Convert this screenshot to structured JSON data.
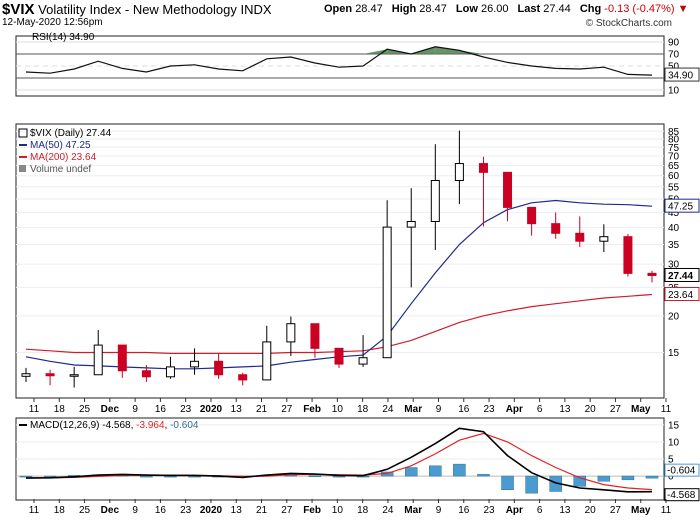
{
  "header": {
    "symbol": "$VIX",
    "name": "Volatility Index - New Methodology",
    "exchange": "INDX",
    "date": "12-May-2020 12:56pm",
    "credit": "© StockCharts.com",
    "open_label": "Open",
    "open": "28.47",
    "high_label": "High",
    "high": "28.47",
    "low_label": "Low",
    "low": "26.00",
    "last_label": "Last",
    "last": "27.44",
    "chg_label": "Chg",
    "chg": "-0.13 (-0.47%)",
    "chg_arrow": "▼"
  },
  "rsi_panel": {
    "legend": "RSI(14) 34.90",
    "value_label": "34.90",
    "levels": [
      90,
      70,
      50,
      30,
      10
    ],
    "overbought": 70,
    "oversold": 30,
    "ylim": [
      0,
      100
    ]
  },
  "price_panel": {
    "legend_price": "$VIX (Daily) 27.44",
    "legend_ma50": "MA(50) 47.25",
    "legend_ma200": "MA(200) 23.64",
    "legend_volume": "Volume undef",
    "last_label": "27.44",
    "ma50_label": "47.25",
    "ma200_label": "23.64",
    "ticks": [
      85,
      80,
      75,
      70,
      65,
      60,
      55,
      50,
      45,
      40,
      35,
      30,
      25,
      20,
      15
    ],
    "scale": "log",
    "ylim": [
      10.5,
      90
    ]
  },
  "macd_panel": {
    "legend_name": "MACD(12,26,9)",
    "legend_macd": "-4.568",
    "legend_signal": "-3.964",
    "legend_hist": "-0.604",
    "ticks": [
      15,
      10,
      5,
      0
    ],
    "hist_label": "-0.604",
    "macd_label": "-4.568",
    "ylim": [
      -7,
      17
    ]
  },
  "x_axis": {
    "labels": [
      {
        "text": "11",
        "bold": false
      },
      {
        "text": "18",
        "bold": false
      },
      {
        "text": "25",
        "bold": false
      },
      {
        "text": "Dec",
        "bold": true
      },
      {
        "text": "9",
        "bold": false
      },
      {
        "text": "16",
        "bold": false
      },
      {
        "text": "23",
        "bold": false
      },
      {
        "text": "2020",
        "bold": true
      },
      {
        "text": "13",
        "bold": false
      },
      {
        "text": "21",
        "bold": false
      },
      {
        "text": "27",
        "bold": false
      },
      {
        "text": "Feb",
        "bold": true
      },
      {
        "text": "10",
        "bold": false
      },
      {
        "text": "18",
        "bold": false
      },
      {
        "text": "24",
        "bold": false
      },
      {
        "text": "Mar",
        "bold": true
      },
      {
        "text": "9",
        "bold": false
      },
      {
        "text": "16",
        "bold": false
      },
      {
        "text": "23",
        "bold": false
      },
      {
        "text": "Apr",
        "bold": true
      },
      {
        "text": "6",
        "bold": false
      },
      {
        "text": "13",
        "bold": false
      },
      {
        "text": "20",
        "bold": false
      },
      {
        "text": "27",
        "bold": false
      },
      {
        "text": "May",
        "bold": true
      },
      {
        "text": "11",
        "bold": false
      }
    ]
  },
  "colors": {
    "up": "#000000",
    "down": "#cc0022",
    "ma50": "#1f2a8a",
    "ma200": "#cc1f2d",
    "rsi_fill": "#4d7f4d",
    "hist": "#4a9bd0",
    "signal": "#e02424"
  },
  "chart_data": [
    {
      "type": "candlestick",
      "title": "$VIX (Daily)",
      "series_names": [
        "$VIX (Daily)",
        "MA(50)",
        "MA(200)"
      ],
      "x": [
        "2019-11-11",
        "2019-11-18",
        "2019-11-25",
        "2019-12-02",
        "2019-12-09",
        "2019-12-16",
        "2019-12-23",
        "2019-12-30",
        "2020-01-06",
        "2020-01-13",
        "2020-01-21",
        "2020-01-27",
        "2020-02-03",
        "2020-02-10",
        "2020-02-18",
        "2020-02-24",
        "2020-03-02",
        "2020-03-09",
        "2020-03-16",
        "2020-03-23",
        "2020-03-30",
        "2020-04-06",
        "2020-04-13",
        "2020-04-20",
        "2020-04-27",
        "2020-05-04",
        "2020-05-11"
      ],
      "close": [
        12.7,
        12.5,
        12.6,
        15.9,
        13.0,
        12.4,
        13.4,
        14.0,
        12.6,
        12.1,
        16.3,
        18.8,
        15.5,
        13.7,
        14.4,
        40.1,
        41.9,
        57.8,
        66.0,
        61.6,
        46.8,
        41.2,
        38.2,
        35.9,
        37.2,
        27.9,
        27.44
      ],
      "high": [
        13.3,
        13.1,
        13.4,
        17.9,
        15.0,
        13.6,
        14.5,
        15.5,
        14.9,
        12.8,
        18.5,
        19.9,
        17.0,
        14.2,
        17.2,
        49.5,
        54.4,
        76.8,
        85.5,
        69.6,
        60.6,
        46.7,
        45.0,
        43.6,
        41.0,
        38.0,
        28.47
      ],
      "low": [
        11.9,
        11.6,
        11.4,
        12.8,
        12.3,
        11.9,
        12.2,
        12.6,
        12.2,
        11.6,
        12.4,
        14.6,
        14.4,
        13.3,
        13.4,
        17.0,
        25.0,
        33.5,
        48.0,
        40.3,
        42.0,
        37.5,
        36.6,
        34.3,
        33.0,
        27.2,
        26.0
      ],
      "ma50": [
        14.5,
        14.0,
        13.6,
        13.5,
        13.4,
        13.3,
        13.2,
        13.2,
        13.3,
        13.4,
        13.5,
        13.9,
        14.2,
        14.5,
        14.7,
        17.1,
        22.0,
        28.0,
        35.0,
        41.5,
        46.0,
        48.5,
        49.4,
        48.5,
        48.0,
        47.8,
        47.25
      ],
      "ma200": [
        15.4,
        15.2,
        15.0,
        15.0,
        15.0,
        15.0,
        14.9,
        14.9,
        14.9,
        14.9,
        14.9,
        15.0,
        15.0,
        15.1,
        15.2,
        15.7,
        16.5,
        17.7,
        19.0,
        20.0,
        20.8,
        21.5,
        22.0,
        22.5,
        23.0,
        23.3,
        23.64
      ],
      "ylim": [
        10.5,
        90
      ]
    },
    {
      "type": "line",
      "title": "RSI(14)",
      "x": [
        "2019-11-11",
        "2019-11-18",
        "2019-11-25",
        "2019-12-02",
        "2019-12-09",
        "2019-12-16",
        "2019-12-23",
        "2019-12-30",
        "2020-01-06",
        "2020-01-13",
        "2020-01-21",
        "2020-01-27",
        "2020-02-03",
        "2020-02-10",
        "2020-02-18",
        "2020-02-24",
        "2020-03-02",
        "2020-03-09",
        "2020-03-16",
        "2020-03-23",
        "2020-03-30",
        "2020-04-06",
        "2020-04-13",
        "2020-04-20",
        "2020-04-27",
        "2020-05-04",
        "2020-05-11"
      ],
      "series": [
        {
          "name": "RSI(14)",
          "values": [
            40,
            38,
            45,
            58,
            46,
            40,
            50,
            52,
            45,
            42,
            62,
            65,
            55,
            48,
            50,
            78,
            70,
            82,
            76,
            65,
            56,
            50,
            46,
            45,
            48,
            36,
            34.9
          ]
        }
      ],
      "ylim": [
        0,
        100
      ]
    },
    {
      "type": "line",
      "title": "MACD(12,26,9)",
      "x": [
        "2019-11-11",
        "2019-11-18",
        "2019-11-25",
        "2019-12-02",
        "2019-12-09",
        "2019-12-16",
        "2019-12-23",
        "2019-12-30",
        "2020-01-06",
        "2020-01-13",
        "2020-01-21",
        "2020-01-27",
        "2020-02-03",
        "2020-02-10",
        "2020-02-18",
        "2020-02-24",
        "2020-03-02",
        "2020-03-09",
        "2020-03-16",
        "2020-03-23",
        "2020-03-30",
        "2020-04-06",
        "2020-04-13",
        "2020-04-20",
        "2020-04-27",
        "2020-05-04",
        "2020-05-11"
      ],
      "series": [
        {
          "name": "MACD",
          "values": [
            -0.6,
            -0.5,
            -0.2,
            0.3,
            0.5,
            0.3,
            0.2,
            0.2,
            0.0,
            -0.4,
            0.3,
            0.8,
            0.6,
            0.2,
            0.1,
            2.0,
            5.5,
            9.5,
            14.0,
            13.0,
            6.0,
            1.0,
            -2.0,
            -3.5,
            -4.0,
            -4.6,
            -4.568
          ]
        },
        {
          "name": "Signal",
          "values": [
            -0.5,
            -0.5,
            -0.4,
            -0.1,
            0.2,
            0.3,
            0.3,
            0.2,
            0.1,
            -0.1,
            0.0,
            0.4,
            0.5,
            0.4,
            0.3,
            0.8,
            3.0,
            6.5,
            10.5,
            12.5,
            10.0,
            6.0,
            2.5,
            -0.5,
            -2.5,
            -3.5,
            -3.964
          ]
        },
        {
          "name": "Histogram",
          "values": [
            -0.1,
            0.0,
            0.2,
            0.4,
            0.3,
            0.0,
            -0.1,
            0.0,
            -0.1,
            -0.3,
            0.3,
            0.4,
            0.1,
            -0.2,
            -0.2,
            1.2,
            2.5,
            3.0,
            3.5,
            0.5,
            -4.0,
            -5.0,
            -4.5,
            -3.0,
            -1.5,
            -1.1,
            -0.604
          ]
        }
      ],
      "ylim": [
        -7,
        17
      ]
    }
  ]
}
